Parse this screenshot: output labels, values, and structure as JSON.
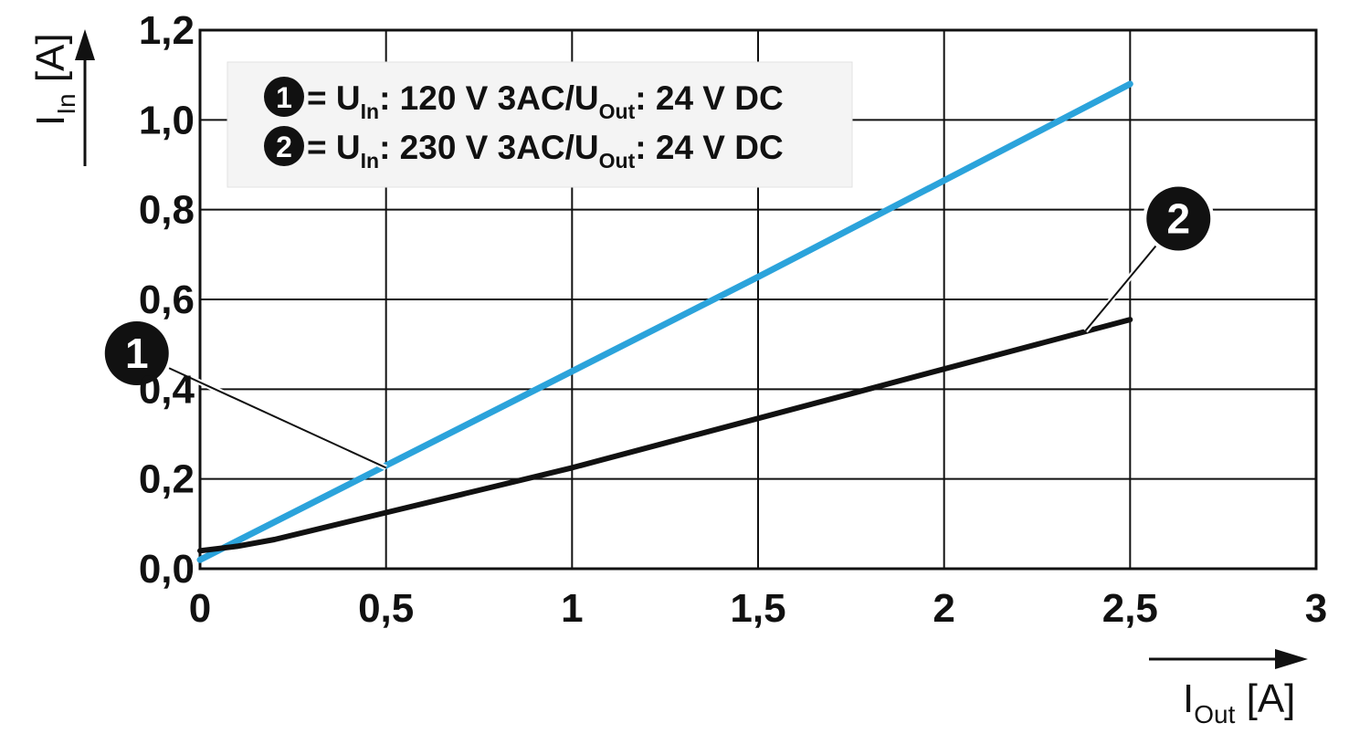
{
  "chart_data": {
    "type": "line",
    "title": "",
    "xlabel": {
      "main": "I",
      "sub": "Out",
      "unit": " [A]"
    },
    "ylabel": {
      "main": "I",
      "sub": "In",
      "unit": " [A]"
    },
    "xlim": [
      0,
      3
    ],
    "ylim": [
      0,
      1.2
    ],
    "x_ticks": [
      0,
      0.5,
      1,
      1.5,
      2,
      2.5,
      3
    ],
    "x_tick_labels": [
      "0",
      "0,5",
      "1",
      "1,5",
      "2",
      "2,5",
      "3"
    ],
    "y_ticks": [
      0,
      0.2,
      0.4,
      0.6,
      0.8,
      1.0,
      1.2
    ],
    "y_tick_labels": [
      "0,0",
      "0,2",
      "0,4",
      "0,6",
      "0,8",
      "1,0",
      "1,2"
    ],
    "grid": true,
    "legend_position": "top-left",
    "series": [
      {
        "id": "1",
        "color": "#2ba3db",
        "legend": {
          "marker": "1",
          "eq": "= U",
          "sub1": "In",
          "mid": ": 120 V 3AC/U",
          "sub2": "Out",
          "end": ": 24 V DC"
        },
        "x": [
          0,
          0.5,
          1.0,
          1.5,
          2.0,
          2.5
        ],
        "y": [
          0.02,
          0.23,
          0.44,
          0.65,
          0.865,
          1.08
        ],
        "callout": {
          "label": "1",
          "anchor_x": 0.5,
          "anchor_y": 0.225,
          "label_x": -0.17,
          "label_y": 0.48
        }
      },
      {
        "id": "2",
        "color": "#111111",
        "legend": {
          "marker": "2",
          "eq": "= U",
          "sub1": "In",
          "mid": ": 230 V 3AC/U",
          "sub2": "Out",
          "end": ": 24 V DC"
        },
        "x": [
          0,
          0.1,
          0.2,
          0.3,
          0.5,
          0.75,
          1.0,
          1.25,
          1.5,
          1.75,
          2.0,
          2.25,
          2.5
        ],
        "y": [
          0.04,
          0.05,
          0.065,
          0.085,
          0.125,
          0.175,
          0.225,
          0.28,
          0.335,
          0.39,
          0.445,
          0.5,
          0.555
        ],
        "callout": {
          "label": "2",
          "anchor_x": 2.38,
          "anchor_y": 0.53,
          "label_x": 2.63,
          "label_y": 0.78
        }
      }
    ]
  }
}
